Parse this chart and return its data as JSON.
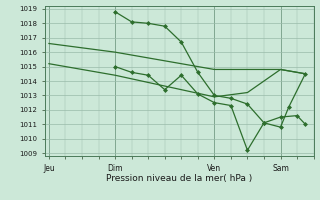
{
  "background_color": "#cce8d8",
  "plot_bg_color": "#cce8d8",
  "grid_color": "#99bbaa",
  "line_color": "#2d6e2d",
  "marker_color": "#2d6e2d",
  "xlabel": "Pression niveau de la mer( hPa )",
  "ylim": [
    1009,
    1019
  ],
  "yticks": [
    1009,
    1010,
    1011,
    1012,
    1013,
    1014,
    1015,
    1016,
    1017,
    1018,
    1019
  ],
  "xtick_labels": [
    "Jeu",
    "Dim",
    "Ven",
    "Sam"
  ],
  "xtick_positions": [
    0,
    16,
    40,
    56
  ],
  "xlim": [
    -1,
    64
  ],
  "vlines": [
    0,
    16,
    40,
    56
  ],
  "line1_x": [
    0,
    8,
    16,
    24,
    32,
    40,
    48,
    56,
    62
  ],
  "line1_y": [
    1016.6,
    1016.3,
    1016.0,
    1015.6,
    1015.2,
    1014.8,
    1014.8,
    1014.8,
    1014.5
  ],
  "line2_x": [
    0,
    8,
    16,
    24,
    32,
    40,
    48,
    56,
    62
  ],
  "line2_y": [
    1015.2,
    1014.8,
    1014.4,
    1013.9,
    1013.4,
    1012.9,
    1013.2,
    1014.8,
    1014.5
  ],
  "line3_x": [
    16,
    20,
    24,
    28,
    32,
    36,
    40,
    44,
    48,
    52,
    56,
    60,
    62
  ],
  "line3_y": [
    1018.8,
    1018.1,
    1018.0,
    1017.8,
    1016.7,
    1014.6,
    1013.0,
    1012.8,
    1012.4,
    1011.1,
    1011.5,
    1011.6,
    1011.0
  ],
  "line4_x": [
    16,
    20,
    24,
    28,
    32,
    36,
    40,
    44,
    48,
    52,
    56,
    58,
    62
  ],
  "line4_y": [
    1015.0,
    1014.6,
    1014.4,
    1013.4,
    1014.4,
    1013.1,
    1012.5,
    1012.3,
    1009.2,
    1011.1,
    1010.8,
    1012.2,
    1014.5
  ]
}
